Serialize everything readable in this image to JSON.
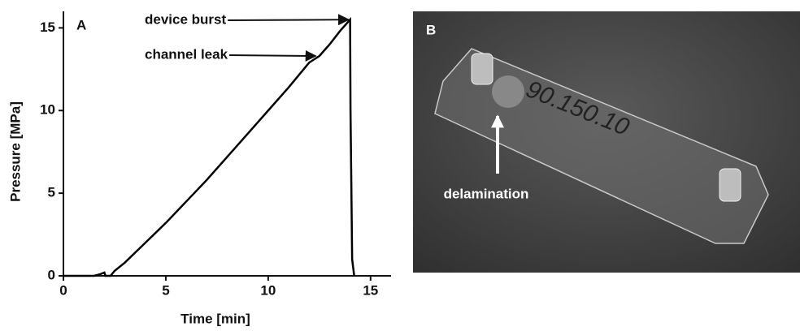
{
  "chart_data": {
    "type": "line",
    "title": "A",
    "xlabel": "Time [min]",
    "ylabel": "Pressure [MPa]",
    "x": [
      0,
      1.5,
      1.8,
      2.0,
      2.05,
      2.3,
      2.5,
      3,
      4,
      5,
      6,
      7,
      8,
      9,
      10,
      11,
      12,
      12.5,
      13,
      13.5,
      14.0,
      14.02,
      14.1,
      14.2
    ],
    "values": [
      0,
      0,
      0.1,
      0.2,
      0,
      0,
      0.3,
      0.8,
      2,
      3.2,
      4.5,
      5.8,
      7.2,
      8.6,
      10,
      11.4,
      12.9,
      13.3,
      14,
      14.8,
      15.5,
      10,
      1,
      0
    ],
    "color": "#000000",
    "xlim": [
      0,
      16
    ],
    "ylim": [
      0,
      16
    ],
    "xticks": [
      0,
      5,
      10,
      15
    ],
    "yticks": [
      0,
      5,
      10,
      15
    ],
    "annotations": [
      {
        "text": "device burst",
        "x": 14,
        "y": 15.5
      },
      {
        "text": "channel leak",
        "x": 12.4,
        "y": 13.3
      }
    ]
  },
  "panel_b": {
    "label": "B",
    "annotation": "delamination"
  }
}
